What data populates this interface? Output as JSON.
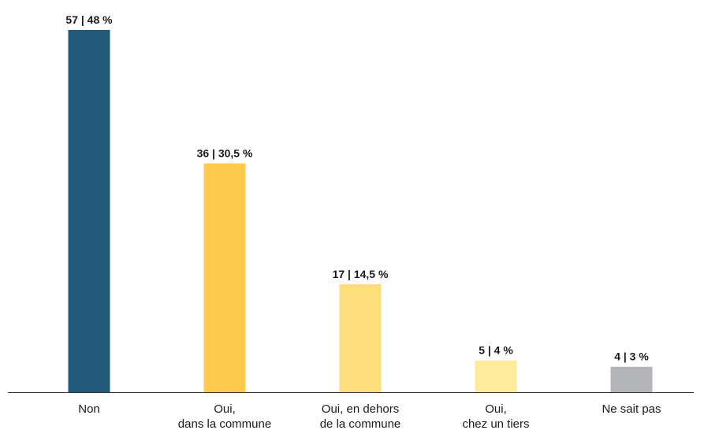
{
  "chart_data": {
    "type": "bar",
    "title": "",
    "xlabel": "",
    "ylabel": "",
    "ylim": [
      0,
      57
    ],
    "grid": false,
    "categories": [
      [
        "Non"
      ],
      [
        "Oui,",
        "dans la commune"
      ],
      [
        "Oui, en dehors",
        "de la commune"
      ],
      [
        "Oui,",
        "chez un tiers"
      ],
      [
        "Ne sait pas"
      ]
    ],
    "values": [
      57,
      36,
      17,
      5,
      4
    ],
    "percentages": [
      48,
      30.5,
      14.5,
      4,
      3
    ],
    "data_labels": [
      "57 | 48 %",
      "36 | 30,5 %",
      "17 | 14,5 %",
      "5 | 4 %",
      "4 | 3 %"
    ],
    "colors": [
      "#235a7c",
      "#fecb4f",
      "#fede7a",
      "#ffeb99",
      "#b4b5b9"
    ],
    "axis_color": "#333333"
  }
}
